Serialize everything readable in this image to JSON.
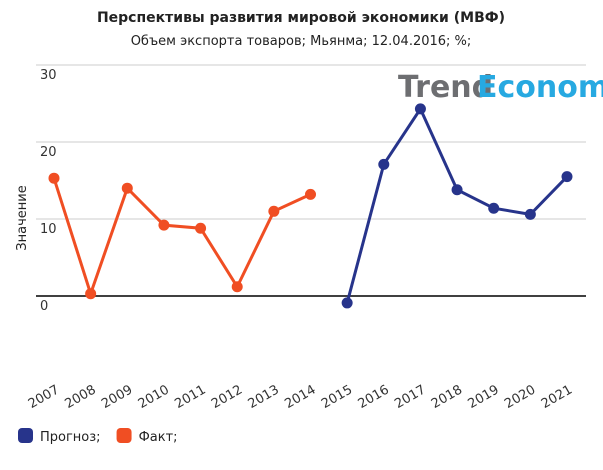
{
  "chart_data": {
    "type": "line",
    "title": "Перспективы развития мировой экономики (МВФ)",
    "subtitle": "Объем экспорта товаров; Мьянма; 12.04.2016; %;",
    "y_label": "Значение",
    "watermark": [
      "Trend",
      "Economy"
    ],
    "categories": [
      "2007",
      "2008",
      "2009",
      "2010",
      "2011",
      "2012",
      "2013",
      "2014",
      "2015",
      "2016",
      "2017",
      "2018",
      "2019",
      "2020",
      "2021"
    ],
    "series": [
      {
        "name": "Прогноз;",
        "color": "#27348b",
        "values": [
          null,
          null,
          null,
          null,
          null,
          null,
          null,
          null,
          -0.9,
          17.1,
          24.3,
          13.8,
          11.4,
          10.6,
          15.5
        ]
      },
      {
        "name": "Факт;",
        "color": "#f04e23",
        "values": [
          15.3,
          0.3,
          14.0,
          9.2,
          8.8,
          1.2,
          11.0,
          13.2,
          null,
          null,
          null,
          null,
          null,
          null,
          null
        ]
      }
    ],
    "ylim": [
      -10,
      30
    ],
    "yticks": [
      0,
      10,
      20,
      30
    ],
    "grid": true
  }
}
